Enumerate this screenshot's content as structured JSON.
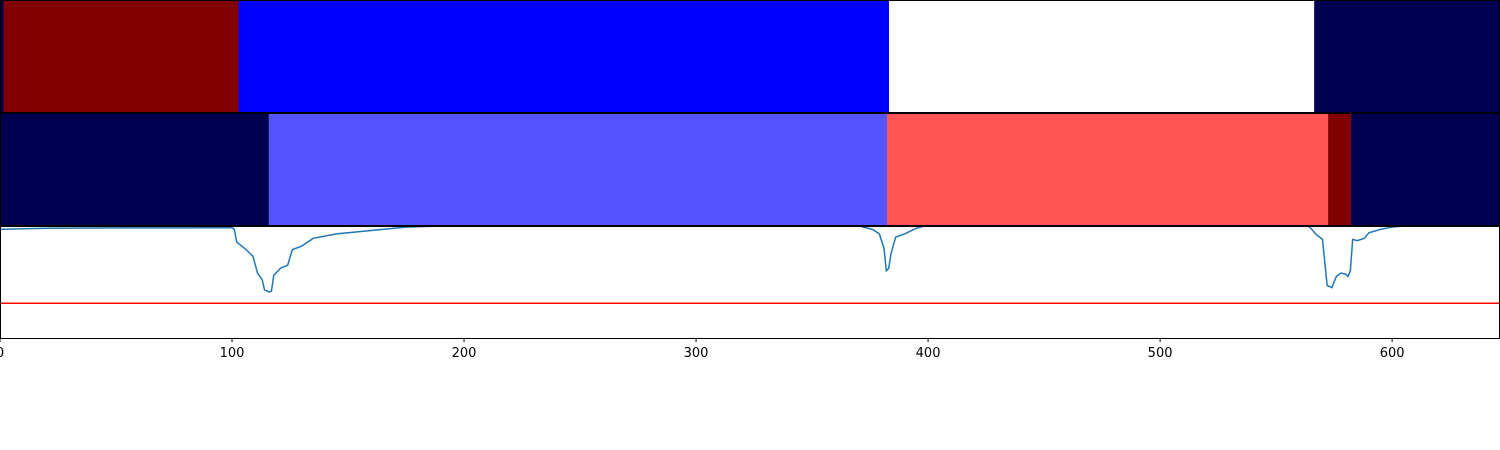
{
  "chart_data": [
    {
      "type": "segments",
      "xlim": [
        0,
        646.5
      ],
      "segments": [
        {
          "start": 0,
          "end": 1.5,
          "color": "#000050"
        },
        {
          "start": 1.5,
          "end": 102.8,
          "color": "#800000"
        },
        {
          "start": 102.8,
          "end": 383.2,
          "color": "#0000ff"
        },
        {
          "start": 383.2,
          "end": 566.4,
          "color": "#ffffff"
        },
        {
          "start": 566.4,
          "end": 646.5,
          "color": "#000050"
        }
      ]
    },
    {
      "type": "segments",
      "xlim": [
        0,
        646.5
      ],
      "segments": [
        {
          "start": 0,
          "end": 115.9,
          "color": "#000050"
        },
        {
          "start": 115.9,
          "end": 382.3,
          "color": "#5555ff"
        },
        {
          "start": 382.3,
          "end": 572.4,
          "color": "#ff5555"
        },
        {
          "start": 572.4,
          "end": 582.3,
          "color": "#800000"
        },
        {
          "start": 582.3,
          "end": 646.5,
          "color": "#000050"
        }
      ]
    },
    {
      "type": "line",
      "xlim": [
        0,
        646.5
      ],
      "ylim": [
        0,
        1
      ],
      "x": [
        0,
        10,
        20,
        40,
        60,
        80,
        100,
        101,
        102,
        106,
        109,
        111,
        113,
        114,
        116,
        117,
        118,
        121,
        124,
        126,
        130,
        135,
        145,
        160,
        175,
        190,
        370,
        372,
        376,
        379,
        381,
        382,
        383,
        384,
        386,
        390,
        395,
        400,
        563,
        565,
        567,
        570,
        572,
        574,
        576,
        578,
        580,
        581,
        582,
        583,
        585,
        588,
        590,
        595,
        600,
        610,
        646.5
      ],
      "series": [
        {
          "color": "#1f77b4",
          "values": [
            0.97,
            0.975,
            0.98,
            0.982,
            0.983,
            0.983,
            0.985,
            0.97,
            0.857,
            0.79,
            0.73,
            0.58,
            0.52,
            0.43,
            0.41,
            0.42,
            0.56,
            0.625,
            0.65,
            0.79,
            0.82,
            0.89,
            0.93,
            0.96,
            0.99,
            1.0,
            1.01,
            0.99,
            0.97,
            0.93,
            0.8,
            0.6,
            0.62,
            0.75,
            0.9,
            0.93,
            0.98,
            1.01,
            1.01,
            0.98,
            0.93,
            0.88,
            0.47,
            0.45,
            0.55,
            0.58,
            0.57,
            0.55,
            0.6,
            0.88,
            0.87,
            0.89,
            0.94,
            0.97,
            0.99,
            1.01,
            1.01
          ]
        }
      ],
      "hline": {
        "value": 0.31,
        "color": "#ff0000"
      },
      "xticks": [
        0,
        100,
        200,
        300,
        400,
        500,
        600
      ]
    }
  ]
}
